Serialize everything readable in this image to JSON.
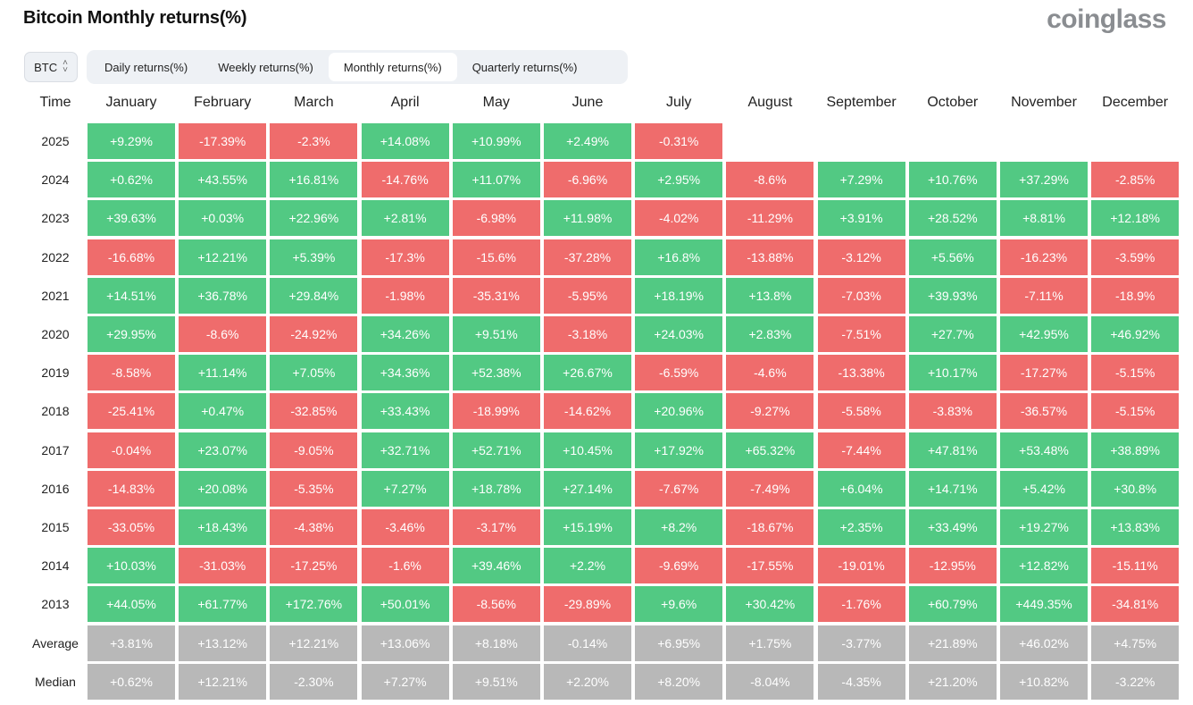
{
  "title": "Bitcoin Monthly returns(%)",
  "logo": "coinglass",
  "asset_select": {
    "value": "BTC"
  },
  "tabs": [
    {
      "label": "Daily returns(%)",
      "active": false
    },
    {
      "label": "Weekly returns(%)",
      "active": false
    },
    {
      "label": "Monthly returns(%)",
      "active": true
    },
    {
      "label": "Quarterly returns(%)",
      "active": false
    }
  ],
  "colors": {
    "positive": "#52c983",
    "negative": "#ef6c6c",
    "summary": "#b8b8b8"
  },
  "table": {
    "time_header": "Time",
    "months": [
      "January",
      "February",
      "March",
      "April",
      "May",
      "June",
      "July",
      "August",
      "September",
      "October",
      "November",
      "December"
    ],
    "rows": [
      {
        "label": "2025",
        "values": [
          "+9.29%",
          "-17.39%",
          "-2.3%",
          "+14.08%",
          "+10.99%",
          "+2.49%",
          "-0.31%",
          "",
          "",
          "",
          "",
          ""
        ]
      },
      {
        "label": "2024",
        "values": [
          "+0.62%",
          "+43.55%",
          "+16.81%",
          "-14.76%",
          "+11.07%",
          "-6.96%",
          "+2.95%",
          "-8.6%",
          "+7.29%",
          "+10.76%",
          "+37.29%",
          "-2.85%"
        ]
      },
      {
        "label": "2023",
        "values": [
          "+39.63%",
          "+0.03%",
          "+22.96%",
          "+2.81%",
          "-6.98%",
          "+11.98%",
          "-4.02%",
          "-11.29%",
          "+3.91%",
          "+28.52%",
          "+8.81%",
          "+12.18%"
        ]
      },
      {
        "label": "2022",
        "values": [
          "-16.68%",
          "+12.21%",
          "+5.39%",
          "-17.3%",
          "-15.6%",
          "-37.28%",
          "+16.8%",
          "-13.88%",
          "-3.12%",
          "+5.56%",
          "-16.23%",
          "-3.59%"
        ]
      },
      {
        "label": "2021",
        "values": [
          "+14.51%",
          "+36.78%",
          "+29.84%",
          "-1.98%",
          "-35.31%",
          "-5.95%",
          "+18.19%",
          "+13.8%",
          "-7.03%",
          "+39.93%",
          "-7.11%",
          "-18.9%"
        ]
      },
      {
        "label": "2020",
        "values": [
          "+29.95%",
          "-8.6%",
          "-24.92%",
          "+34.26%",
          "+9.51%",
          "-3.18%",
          "+24.03%",
          "+2.83%",
          "-7.51%",
          "+27.7%",
          "+42.95%",
          "+46.92%"
        ]
      },
      {
        "label": "2019",
        "values": [
          "-8.58%",
          "+11.14%",
          "+7.05%",
          "+34.36%",
          "+52.38%",
          "+26.67%",
          "-6.59%",
          "-4.6%",
          "-13.38%",
          "+10.17%",
          "-17.27%",
          "-5.15%"
        ]
      },
      {
        "label": "2018",
        "values": [
          "-25.41%",
          "+0.47%",
          "-32.85%",
          "+33.43%",
          "-18.99%",
          "-14.62%",
          "+20.96%",
          "-9.27%",
          "-5.58%",
          "-3.83%",
          "-36.57%",
          "-5.15%"
        ]
      },
      {
        "label": "2017",
        "values": [
          "-0.04%",
          "+23.07%",
          "-9.05%",
          "+32.71%",
          "+52.71%",
          "+10.45%",
          "+17.92%",
          "+65.32%",
          "-7.44%",
          "+47.81%",
          "+53.48%",
          "+38.89%"
        ]
      },
      {
        "label": "2016",
        "values": [
          "-14.83%",
          "+20.08%",
          "-5.35%",
          "+7.27%",
          "+18.78%",
          "+27.14%",
          "-7.67%",
          "-7.49%",
          "+6.04%",
          "+14.71%",
          "+5.42%",
          "+30.8%"
        ]
      },
      {
        "label": "2015",
        "values": [
          "-33.05%",
          "+18.43%",
          "-4.38%",
          "-3.46%",
          "-3.17%",
          "+15.19%",
          "+8.2%",
          "-18.67%",
          "+2.35%",
          "+33.49%",
          "+19.27%",
          "+13.83%"
        ]
      },
      {
        "label": "2014",
        "values": [
          "+10.03%",
          "-31.03%",
          "-17.25%",
          "-1.6%",
          "+39.46%",
          "+2.2%",
          "-9.69%",
          "-17.55%",
          "-19.01%",
          "-12.95%",
          "+12.82%",
          "-15.11%"
        ]
      },
      {
        "label": "2013",
        "values": [
          "+44.05%",
          "+61.77%",
          "+172.76%",
          "+50.01%",
          "-8.56%",
          "-29.89%",
          "+9.6%",
          "+30.42%",
          "-1.76%",
          "+60.79%",
          "+449.35%",
          "-34.81%"
        ]
      }
    ],
    "summary_rows": [
      {
        "label": "Average",
        "values": [
          "+3.81%",
          "+13.12%",
          "+12.21%",
          "+13.06%",
          "+8.18%",
          "-0.14%",
          "+6.95%",
          "+1.75%",
          "-3.77%",
          "+21.89%",
          "+46.02%",
          "+4.75%"
        ]
      },
      {
        "label": "Median",
        "values": [
          "+0.62%",
          "+12.21%",
          "-2.30%",
          "+7.27%",
          "+9.51%",
          "+2.20%",
          "+8.20%",
          "-8.04%",
          "-4.35%",
          "+21.20%",
          "+10.82%",
          "-3.22%"
        ]
      }
    ]
  }
}
